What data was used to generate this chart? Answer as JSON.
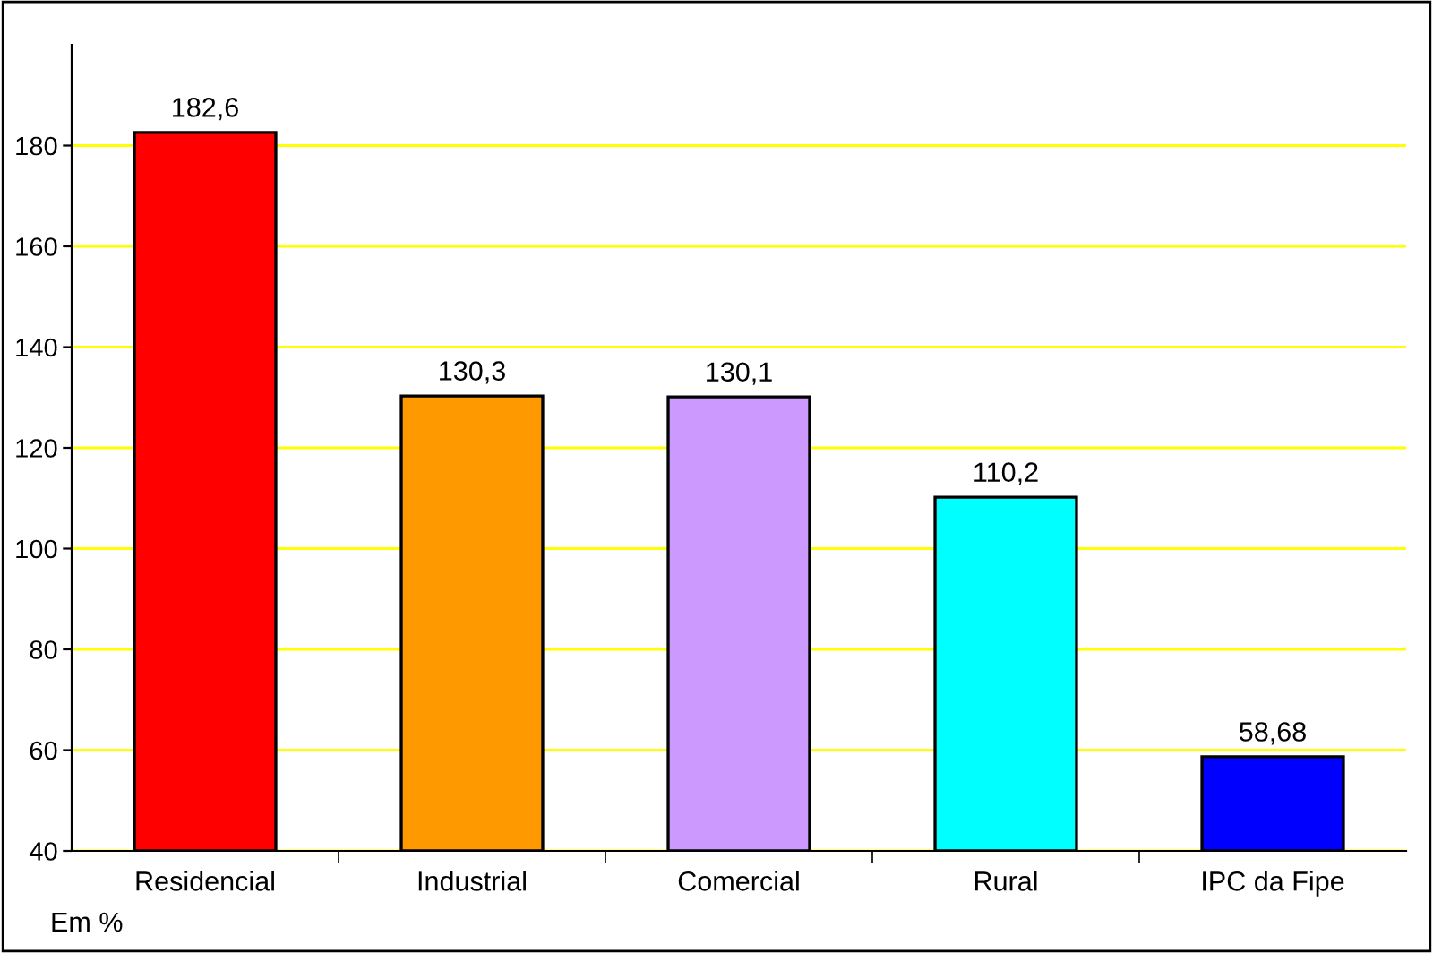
{
  "chart_data": {
    "type": "bar",
    "categories": [
      "Residencial",
      "Industrial",
      "Comercial",
      "Rural",
      "IPC da Fipe"
    ],
    "values": [
      182.6,
      130.3,
      130.1,
      110.2,
      58.68
    ],
    "value_labels": [
      "182,6",
      "130,3",
      "130,1",
      "110,2",
      "58,68"
    ],
    "colors": [
      "#ff0000",
      "#ff9900",
      "#cc99ff",
      "#00ffff",
      "#0000ff"
    ],
    "ylim": [
      40,
      200
    ],
    "yticks": [
      40,
      60,
      80,
      100,
      120,
      140,
      160,
      180
    ],
    "grid": "y",
    "annotations": [
      "Em %"
    ]
  }
}
